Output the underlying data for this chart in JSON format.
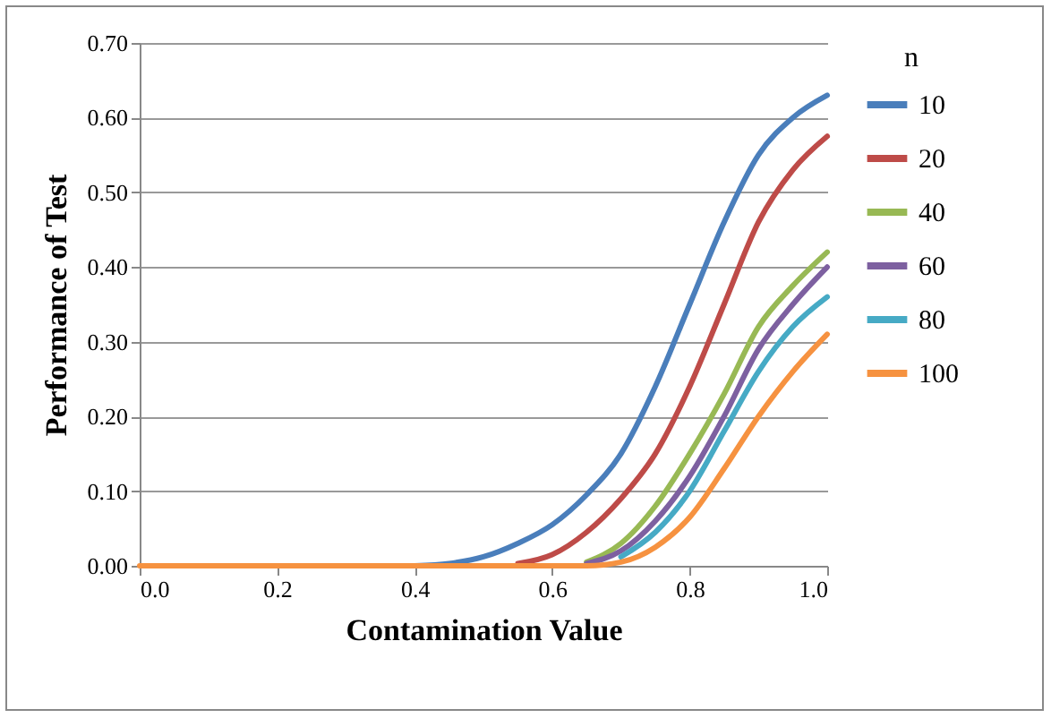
{
  "chart_data": {
    "type": "line",
    "xlabel": "Contamination  Value",
    "ylabel": "Performance  of Test",
    "legend_title": "n",
    "legend": "right",
    "grid": "y",
    "marker": "none",
    "line_style": "solid",
    "x": [
      0,
      0.1,
      0.2,
      0.3,
      0.4,
      0.45,
      0.5,
      0.55,
      0.6,
      0.65,
      0.7,
      0.75,
      0.8,
      0.85,
      0.9,
      0.95,
      1.0
    ],
    "xlim": [
      0,
      1
    ],
    "xticks": [
      {
        "value": 0,
        "label": "0.0"
      },
      0.2,
      0.4,
      0.6,
      0.8,
      {
        "value": 1,
        "label": "1.0"
      }
    ],
    "ylim": [
      0,
      0.7
    ],
    "yticks": [
      {
        "value": 0,
        "label": "0.00"
      },
      {
        "value": 0.1,
        "label": "0.10"
      },
      {
        "value": 0.2,
        "label": "0.20"
      },
      {
        "value": 0.3,
        "label": "0.30"
      },
      {
        "value": 0.4,
        "label": "0.40"
      },
      {
        "value": 0.5,
        "label": "0.50"
      },
      {
        "value": 0.6,
        "label": "0.60"
      },
      {
        "value": 0.7,
        "label": "0.70"
      }
    ],
    "series": [
      {
        "name": "10",
        "color": "#4a7ebb",
        "values": [
          null,
          null,
          null,
          null,
          0,
          0.003,
          0.012,
          0.03,
          0.055,
          0.095,
          0.15,
          0.24,
          0.35,
          0.46,
          0.55,
          0.6,
          0.63
        ]
      },
      {
        "name": "20",
        "color": "#be4b48",
        "values": [
          null,
          null,
          null,
          null,
          null,
          null,
          null,
          0.003,
          0.015,
          0.045,
          0.09,
          0.15,
          0.24,
          0.35,
          0.46,
          0.53,
          0.575
        ]
      },
      {
        "name": "40",
        "color": "#98b954",
        "values": [
          null,
          null,
          null,
          null,
          null,
          null,
          null,
          null,
          null,
          0.005,
          0.03,
          0.08,
          0.15,
          0.23,
          0.32,
          0.375,
          0.42
        ]
      },
      {
        "name": "60",
        "color": "#7d60a0",
        "values": [
          null,
          null,
          null,
          null,
          null,
          null,
          null,
          null,
          null,
          0.003,
          0.02,
          0.06,
          0.12,
          0.2,
          0.29,
          0.35,
          0.4
        ]
      },
      {
        "name": "80",
        "color": "#46aac5",
        "values": [
          null,
          null,
          null,
          null,
          null,
          null,
          null,
          null,
          null,
          null,
          0.012,
          0.045,
          0.1,
          0.18,
          0.26,
          0.32,
          0.36
        ]
      },
      {
        "name": "100",
        "color": "#f69240",
        "values": [
          0,
          0,
          0,
          0,
          0,
          0,
          0,
          0,
          0,
          0,
          0.005,
          0.025,
          0.065,
          0.13,
          0.2,
          0.26,
          0.31
        ]
      }
    ]
  }
}
